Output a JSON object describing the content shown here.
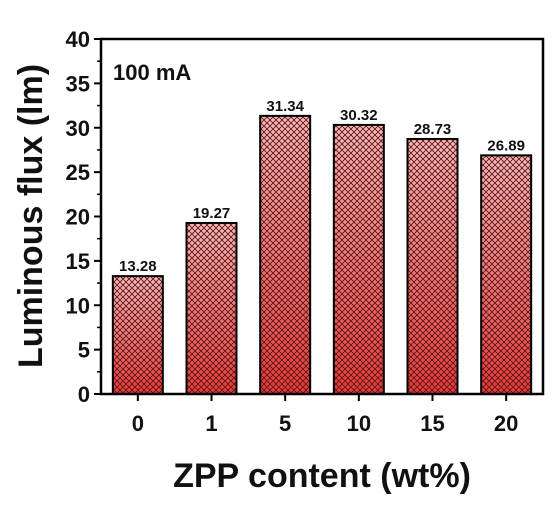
{
  "chart_data": {
    "type": "bar",
    "xlabel": "ZPP content (wt%)",
    "ylabel": "Luminous flux (lm)",
    "annotation": "100 mA",
    "categories": [
      "0",
      "1",
      "5",
      "10",
      "15",
      "20"
    ],
    "values": [
      13.28,
      19.27,
      31.34,
      30.32,
      28.73,
      26.89
    ],
    "value_labels": [
      "13.28",
      "19.27",
      "31.34",
      "30.32",
      "28.73",
      "26.89"
    ],
    "ylim": [
      0,
      40
    ],
    "yticks": [
      "0",
      "5",
      "10",
      "15",
      "20",
      "25",
      "30",
      "35",
      "40"
    ],
    "grid": false,
    "legend": "none",
    "bar_fill_top": "#f4b8b8",
    "bar_fill_bottom": "#e23b3b",
    "bar_hatch": "crosshatch",
    "bar_edge": "#000000"
  }
}
